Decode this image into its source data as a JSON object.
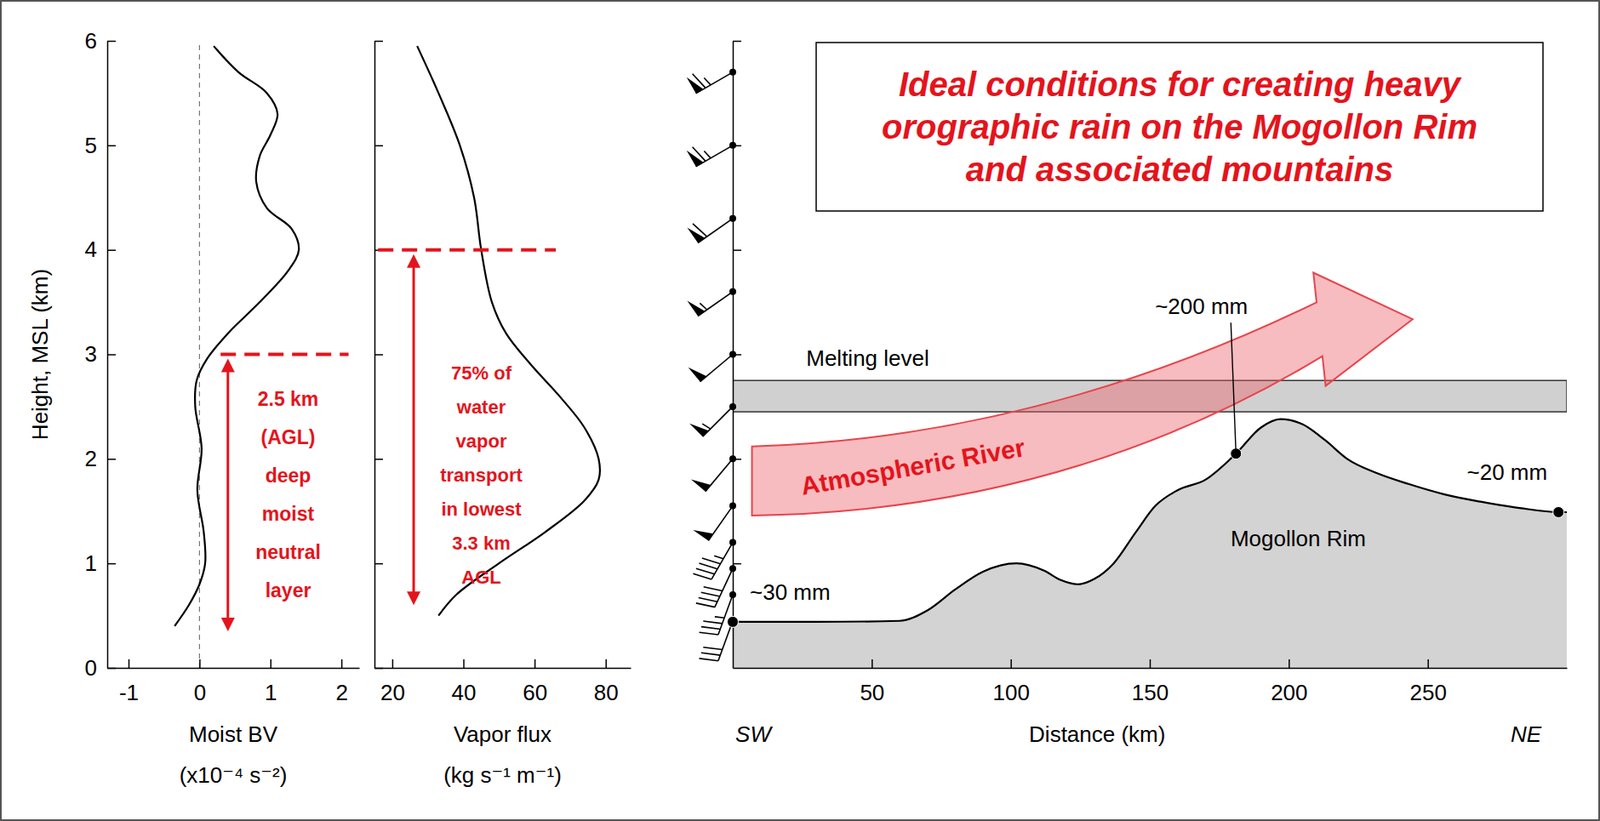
{
  "chart_data": [
    {
      "type": "line",
      "ylabel": "Height, MSL (km)",
      "xlabel": [
        "Moist BV",
        "(x10⁻⁴ s⁻²)"
      ],
      "xlim": [
        -1.3,
        2.25
      ],
      "xticks": [
        -1,
        0,
        1,
        2
      ],
      "ylim": [
        0,
        6
      ],
      "yticks": [
        0,
        1,
        2,
        3,
        4,
        5,
        6
      ],
      "reference_x": 0,
      "series": [
        {
          "color": "#000000",
          "x": [
            -0.35,
            -0.15,
            0.0,
            0.08,
            0.06,
            -0.03,
            0.03,
            -0.06,
            -0.04,
            0.1,
            0.4,
            0.85,
            1.25,
            1.4,
            1.3,
            0.95,
            0.8,
            0.85,
            1.0,
            1.1,
            0.95,
            0.55,
            0.2
          ],
          "values": [
            0.4,
            0.6,
            0.8,
            1.0,
            1.3,
            1.7,
            2.1,
            2.5,
            2.75,
            2.95,
            3.2,
            3.5,
            3.8,
            4.0,
            4.2,
            4.4,
            4.65,
            4.9,
            5.1,
            5.3,
            5.5,
            5.7,
            5.95
          ]
        }
      ],
      "annotation": {
        "text": [
          "2.5 km",
          "(AGL)",
          "deep",
          "moist",
          "neutral",
          "layer"
        ],
        "level": 3,
        "range": [
          0.35,
          3
        ]
      }
    },
    {
      "type": "line",
      "xlabel": [
        "Vapor flux",
        "(kg s⁻¹ m⁻¹)"
      ],
      "xlim": [
        15,
        87
      ],
      "xticks": [
        20,
        40,
        60,
        80
      ],
      "ylim": [
        0,
        6
      ],
      "yticks": [
        0,
        1,
        2,
        3,
        4,
        5,
        6
      ],
      "tick_labels": "x",
      "series": [
        {
          "color": "#000000",
          "x": [
            33,
            38,
            50,
            63,
            74,
            78,
            78,
            74,
            67,
            59,
            52,
            48,
            45,
            43,
            39,
            33,
            27
          ],
          "values": [
            0.5,
            0.7,
            1.0,
            1.3,
            1.6,
            1.8,
            2.0,
            2.3,
            2.6,
            2.9,
            3.2,
            3.5,
            4.0,
            4.5,
            5.0,
            5.5,
            5.95
          ]
        }
      ],
      "annotation": {
        "text": [
          "75% of",
          "water",
          "vapor",
          "transport",
          "in lowest",
          "3.3 km",
          "AGL"
        ],
        "level": 4,
        "range": [
          0.6,
          4
        ]
      }
    },
    {
      "type": "cross_section",
      "title": "Ideal conditions for creating heavy orographic rain on the Mogollon Rim and associated mountains",
      "xlabel": "Distance (km)",
      "direction_labels": [
        "SW",
        "NE"
      ],
      "xlim": [
        0,
        300
      ],
      "xticks": [
        50,
        100,
        150,
        200,
        250
      ],
      "ylim": [
        0,
        6
      ],
      "yticks": [
        1,
        2,
        3,
        4,
        5,
        6
      ],
      "tick_labels": "x",
      "melting_level": {
        "label": "Melting level",
        "bottom": 2.45,
        "top": 2.75
      },
      "atmospheric_river": {
        "label": "Atmospheric River"
      },
      "terrain": {
        "label": "Mogollon Rim",
        "x": [
          0,
          30,
          60,
          70,
          80,
          90,
          102,
          112,
          118,
          124,
          130,
          137,
          145,
          152,
          160,
          170,
          181,
          190,
          197,
          205,
          213,
          221,
          232,
          243,
          256,
          269,
          283,
          297,
          300
        ],
        "values": [
          0.44,
          0.44,
          0.45,
          0.55,
          0.75,
          0.92,
          1.0,
          0.93,
          0.84,
          0.8,
          0.85,
          1.0,
          1.3,
          1.55,
          1.7,
          1.8,
          2.05,
          2.3,
          2.38,
          2.33,
          2.18,
          2.0,
          1.86,
          1.76,
          1.66,
          1.59,
          1.53,
          1.49,
          1.49
        ]
      },
      "precip_points": [
        {
          "distance": 0,
          "height": 0.44,
          "label": "~30 mm"
        },
        {
          "distance": 181,
          "height": 2.05,
          "label": "~200 mm"
        },
        {
          "distance": 297,
          "height": 1.49,
          "label": "~20 mm"
        }
      ],
      "wind_barbs": {
        "heights": [
          5.7,
          5.0,
          4.3,
          3.6,
          3.0,
          2.5,
          2.0,
          1.55,
          1.2,
          0.95,
          0.7,
          0.45
        ],
        "speeds": [
          65,
          65,
          60,
          55,
          50,
          55,
          50,
          50,
          45,
          40,
          35,
          30
        ],
        "directions": [
          240,
          240,
          235,
          235,
          230,
          225,
          220,
          215,
          210,
          205,
          200,
          200
        ]
      }
    }
  ]
}
